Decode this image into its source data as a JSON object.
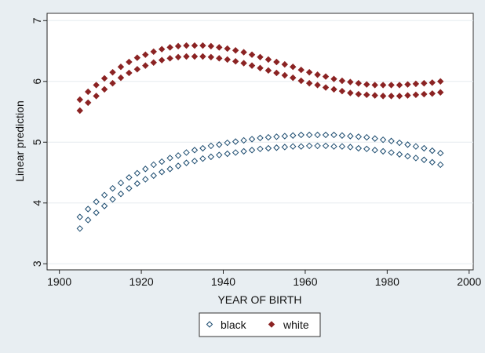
{
  "chart_data": {
    "type": "scatter",
    "title": "",
    "xlabel": "YEAR OF BIRTH",
    "ylabel": "Linear prediction",
    "xlim": [
      1897,
      2001
    ],
    "ylim": [
      2.9,
      7.12
    ],
    "xticks": [
      1900,
      1920,
      1940,
      1960,
      1980,
      2000
    ],
    "yticks": [
      3,
      4,
      5,
      6,
      7
    ],
    "grid": "horizontal",
    "legend": {
      "position": "bottom",
      "entries": [
        "black",
        "white"
      ]
    },
    "x": [
      1905,
      1907,
      1909,
      1911,
      1913,
      1915,
      1917,
      1919,
      1921,
      1923,
      1925,
      1927,
      1929,
      1931,
      1933,
      1935,
      1937,
      1939,
      1941,
      1943,
      1945,
      1947,
      1949,
      1951,
      1953,
      1955,
      1957,
      1959,
      1961,
      1963,
      1965,
      1967,
      1969,
      1971,
      1973,
      1975,
      1977,
      1979,
      1981,
      1983,
      1985,
      1987,
      1989,
      1991,
      1993
    ],
    "series": [
      {
        "name": "black",
        "group": "black",
        "marker": "hollow-diamond",
        "color": "#1a4a6e",
        "values": [
          3.77,
          3.9,
          4.02,
          4.13,
          4.24,
          4.33,
          4.42,
          4.49,
          4.56,
          4.63,
          4.68,
          4.74,
          4.78,
          4.83,
          4.87,
          4.9,
          4.94,
          4.96,
          4.99,
          5.01,
          5.03,
          5.05,
          5.07,
          5.08,
          5.09,
          5.1,
          5.11,
          5.12,
          5.12,
          5.12,
          5.12,
          5.12,
          5.11,
          5.1,
          5.09,
          5.08,
          5.06,
          5.04,
          5.02,
          4.99,
          4.96,
          4.93,
          4.9,
          4.86,
          4.82
        ]
      },
      {
        "name": "black (lower)",
        "group": "black",
        "marker": "hollow-diamond",
        "color": "#1a4a6e",
        "values": [
          3.58,
          3.72,
          3.84,
          3.95,
          4.06,
          4.15,
          4.24,
          4.32,
          4.39,
          4.45,
          4.51,
          4.56,
          4.61,
          4.66,
          4.69,
          4.73,
          4.76,
          4.79,
          4.81,
          4.83,
          4.85,
          4.87,
          4.89,
          4.9,
          4.91,
          4.92,
          4.93,
          4.93,
          4.94,
          4.94,
          4.94,
          4.93,
          4.93,
          4.92,
          4.9,
          4.89,
          4.87,
          4.85,
          4.83,
          4.8,
          4.77,
          4.74,
          4.71,
          4.67,
          4.63
        ]
      },
      {
        "name": "white",
        "group": "white",
        "marker": "filled-diamond",
        "color": "#8b2323",
        "values": [
          5.7,
          5.83,
          5.94,
          6.05,
          6.15,
          6.24,
          6.32,
          6.39,
          6.44,
          6.49,
          6.53,
          6.56,
          6.58,
          6.59,
          6.59,
          6.59,
          6.58,
          6.56,
          6.54,
          6.51,
          6.48,
          6.44,
          6.4,
          6.36,
          6.32,
          6.28,
          6.24,
          6.19,
          6.15,
          6.11,
          6.08,
          6.04,
          6.01,
          5.99,
          5.97,
          5.95,
          5.94,
          5.94,
          5.94,
          5.94,
          5.95,
          5.96,
          5.97,
          5.98,
          6.0
        ]
      },
      {
        "name": "white (lower)",
        "group": "white",
        "marker": "filled-diamond",
        "color": "#8b2323",
        "values": [
          5.52,
          5.65,
          5.76,
          5.87,
          5.97,
          6.06,
          6.14,
          6.2,
          6.26,
          6.31,
          6.35,
          6.38,
          6.4,
          6.41,
          6.41,
          6.41,
          6.4,
          6.38,
          6.36,
          6.33,
          6.3,
          6.26,
          6.22,
          6.18,
          6.14,
          6.1,
          6.06,
          6.01,
          5.97,
          5.94,
          5.9,
          5.87,
          5.84,
          5.81,
          5.79,
          5.78,
          5.77,
          5.76,
          5.76,
          5.76,
          5.77,
          5.78,
          5.79,
          5.8,
          5.82
        ]
      }
    ]
  }
}
